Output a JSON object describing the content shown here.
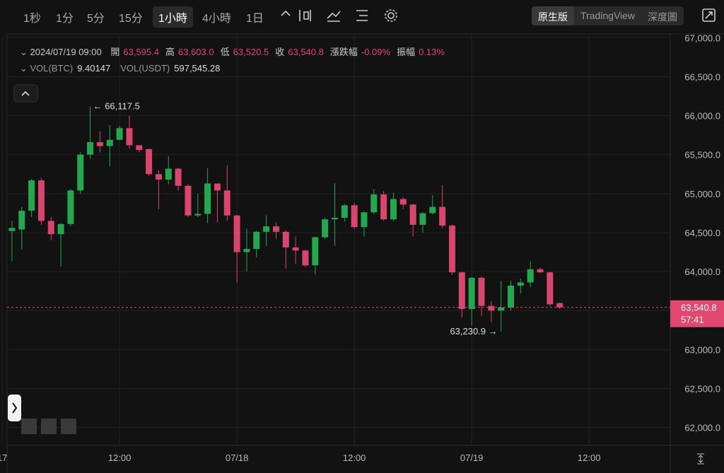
{
  "toolbar": {
    "intervals": [
      "1秒",
      "1分",
      "5分",
      "15分",
      "1小時",
      "4小時",
      "1日"
    ],
    "active_interval": 4,
    "views": [
      "原生版",
      "TradingView",
      "深度圖"
    ],
    "active_view": 0
  },
  "header": {
    "time": "2024/07/19 09:00",
    "ohlc": [
      {
        "label": "開",
        "value": "63,595.4"
      },
      {
        "label": "高",
        "value": "63,603.0"
      },
      {
        "label": "低",
        "value": "63,520.5"
      },
      {
        "label": "收",
        "value": "63,540.8"
      },
      {
        "label": "漲跌幅",
        "value": "-0.09%"
      },
      {
        "label": "振幅",
        "value": "0.13%"
      }
    ],
    "volume": [
      {
        "label": "VOL(BTC)",
        "value": "9.40147"
      },
      {
        "label": "VOL(USDT)",
        "value": "597,545.28"
      }
    ]
  },
  "chart_data": {
    "type": "candlestick",
    "up_color": "#25a750",
    "down_color": "#d9466d",
    "open": [
      64520,
      64540,
      64780,
      65170,
      64650,
      64480,
      64610,
      65040,
      65500,
      65660,
      65610,
      65690,
      65840,
      65620,
      65570,
      65250,
      65180,
      65320,
      65100,
      64720,
      64740,
      65130,
      65040,
      64720,
      64250,
      64290,
      64510,
      64580,
      64510,
      64310,
      64270,
      64080,
      64440,
      64670,
      64690,
      64850,
      64570,
      64760,
      64990,
      64670,
      64930,
      64860,
      64600,
      64750,
      64830,
      64590,
      63990,
      63520,
      63920,
      63560,
      63500,
      63540,
      63820,
      63860,
      64030,
      63990,
      63595.4
    ],
    "high": [
      64650,
      64830,
      65190,
      65200,
      64700,
      64620,
      65060,
      65530,
      66117.5,
      65800,
      65880,
      65870,
      66000,
      65620,
      65580,
      65300,
      65480,
      65330,
      65120,
      65000,
      65330,
      65130,
      65360,
      64730,
      64550,
      64520,
      64720,
      64630,
      64530,
      64450,
      64280,
      64450,
      64690,
      65130,
      64870,
      64880,
      64770,
      65060,
      65030,
      65010,
      64950,
      64870,
      64760,
      64980,
      65110,
      64600,
      64000,
      63930,
      63940,
      63620,
      63880,
      63880,
      63910,
      64130,
      64050,
      64000,
      63603
    ],
    "low": [
      64130,
      64280,
      64700,
      64600,
      64400,
      64060,
      64580,
      65000,
      65450,
      65530,
      65350,
      65680,
      65580,
      65530,
      65230,
      64800,
      65120,
      65040,
      64700,
      64700,
      64620,
      64630,
      64650,
      63860,
      64000,
      64180,
      64330,
      64420,
      64040,
      64100,
      64060,
      63960,
      64420,
      64330,
      64640,
      64550,
      64450,
      64740,
      64650,
      64650,
      64800,
      64450,
      64500,
      64730,
      64560,
      63960,
      63410,
      63310,
      63430,
      63350,
      63230.9,
      63500,
      63720,
      63800,
      63980,
      63560,
      63520.5
    ],
    "close": [
      64560,
      64780,
      65170,
      64650,
      64480,
      64610,
      65040,
      65500,
      65660,
      65610,
      65690,
      65840,
      65620,
      65560,
      65250,
      65180,
      65320,
      65100,
      64720,
      64740,
      65130,
      65040,
      64720,
      64250,
      64290,
      64510,
      64580,
      64510,
      64310,
      64270,
      64080,
      64440,
      64670,
      64690,
      64850,
      64570,
      64760,
      64990,
      64670,
      64930,
      64860,
      64600,
      64750,
      64830,
      64590,
      63990,
      63520,
      63920,
      63560,
      63500,
      63540,
      63820,
      63860,
      64030,
      63990,
      63580,
      63540.8
    ],
    "xlim": [
      -0.5,
      67.3
    ],
    "xticks": [
      {
        "value": -1,
        "label": "17"
      },
      {
        "value": 11,
        "label": "12:00"
      },
      {
        "value": 23,
        "label": "07/18"
      },
      {
        "value": 35,
        "label": "12:00"
      },
      {
        "value": 47,
        "label": "07/19"
      },
      {
        "value": 59,
        "label": "12:00"
      }
    ],
    "ylim": [
      61770,
      67030
    ],
    "yticks": [
      {
        "value": 62000,
        "label": "62,000.0"
      },
      {
        "value": 62500,
        "label": "62,500.0"
      },
      {
        "value": 63000,
        "label": "63,000.0"
      },
      {
        "value": 63500,
        "label": "63,500.0"
      },
      {
        "value": 64000,
        "label": "64,000.0"
      },
      {
        "value": 64500,
        "label": "64,500.0"
      },
      {
        "value": 65000,
        "label": "65,000.0"
      },
      {
        "value": 65500,
        "label": "65,500.0"
      },
      {
        "value": 66000,
        "label": "66,000.0"
      },
      {
        "value": 66500,
        "label": "66,500.0"
      },
      {
        "value": 67000,
        "label": "67,000.0"
      }
    ],
    "grid": true,
    "annotations": [
      {
        "text": "← 66,117.5",
        "index": 8,
        "value": 66117.5
      },
      {
        "text": "63,230.9 →",
        "index": 50,
        "value": 63230.9
      }
    ],
    "last_price": {
      "label": "63,540.8",
      "countdown": "57:41",
      "color": "#e0486f"
    }
  }
}
